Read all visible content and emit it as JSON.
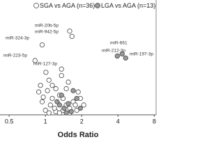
{
  "chart_data": {
    "type": "scatter",
    "x_label": "Odds Ratio",
    "xlim": [
      0.42,
      8.4
    ],
    "xticks": [
      0.5,
      1,
      2,
      4,
      8
    ],
    "log_x": true,
    "ylim": [
      0,
      10
    ],
    "series": [
      {
        "name": "SGA vs AGA (n=36)",
        "color": "#ffffff",
        "edge": "#444444",
        "x": [
          1.59,
          1.66,
          0.94,
          0.82,
          1.36,
          1.07,
          1.14,
          1.22,
          0.88,
          1.31,
          1.4,
          0.94,
          1.1,
          1.49,
          1.59,
          1.0,
          1.22,
          1.82,
          2.08,
          1.95,
          0.91,
          0.96,
          1.04,
          1.7,
          1.19,
          1.4,
          1.07,
          1.31,
          1.59,
          1.77,
          1.87,
          1.49,
          1.55,
          1.36,
          1.01,
          1.14
        ],
        "values": [
          7.76,
          7.27,
          6.48,
          5.03,
          4.24,
          3.21,
          2.73,
          2.42,
          2.12,
          1.82,
          1.52,
          1.21,
          0.91,
          0.91,
          0.61,
          0.42,
          0.3,
          0.42,
          0.91,
          1.52,
          2.73,
          1.64,
          2.24,
          1.21,
          0.61,
          0.42,
          0.18,
          0.18,
          0.18,
          0.91,
          2.12,
          2.42,
          3.03,
          3.64,
          3.94,
          1.52
        ]
      },
      {
        "name": "LGA vs AGA (n=13)",
        "color": "#999999",
        "edge": "#444444",
        "x": [
          4.33,
          4.63,
          3.95,
          1.7,
          1.82,
          1.55,
          1.43,
          1.95,
          1.25,
          1.36,
          1.64,
          1.49,
          1.31
        ],
        "values": [
          5.64,
          5.27,
          5.45,
          2.24,
          1.52,
          1.03,
          0.61,
          0.61,
          1.21,
          1.82,
          0.3,
          0.18,
          0.91
        ]
      }
    ],
    "annotations": [
      "miR-20b-5p",
      "miR-942-5p",
      "miR-324-3p",
      "miR-223-5p",
      "miR-127-3p",
      "miR-661",
      "miR-212-3p",
      "miR-197-3p"
    ]
  }
}
